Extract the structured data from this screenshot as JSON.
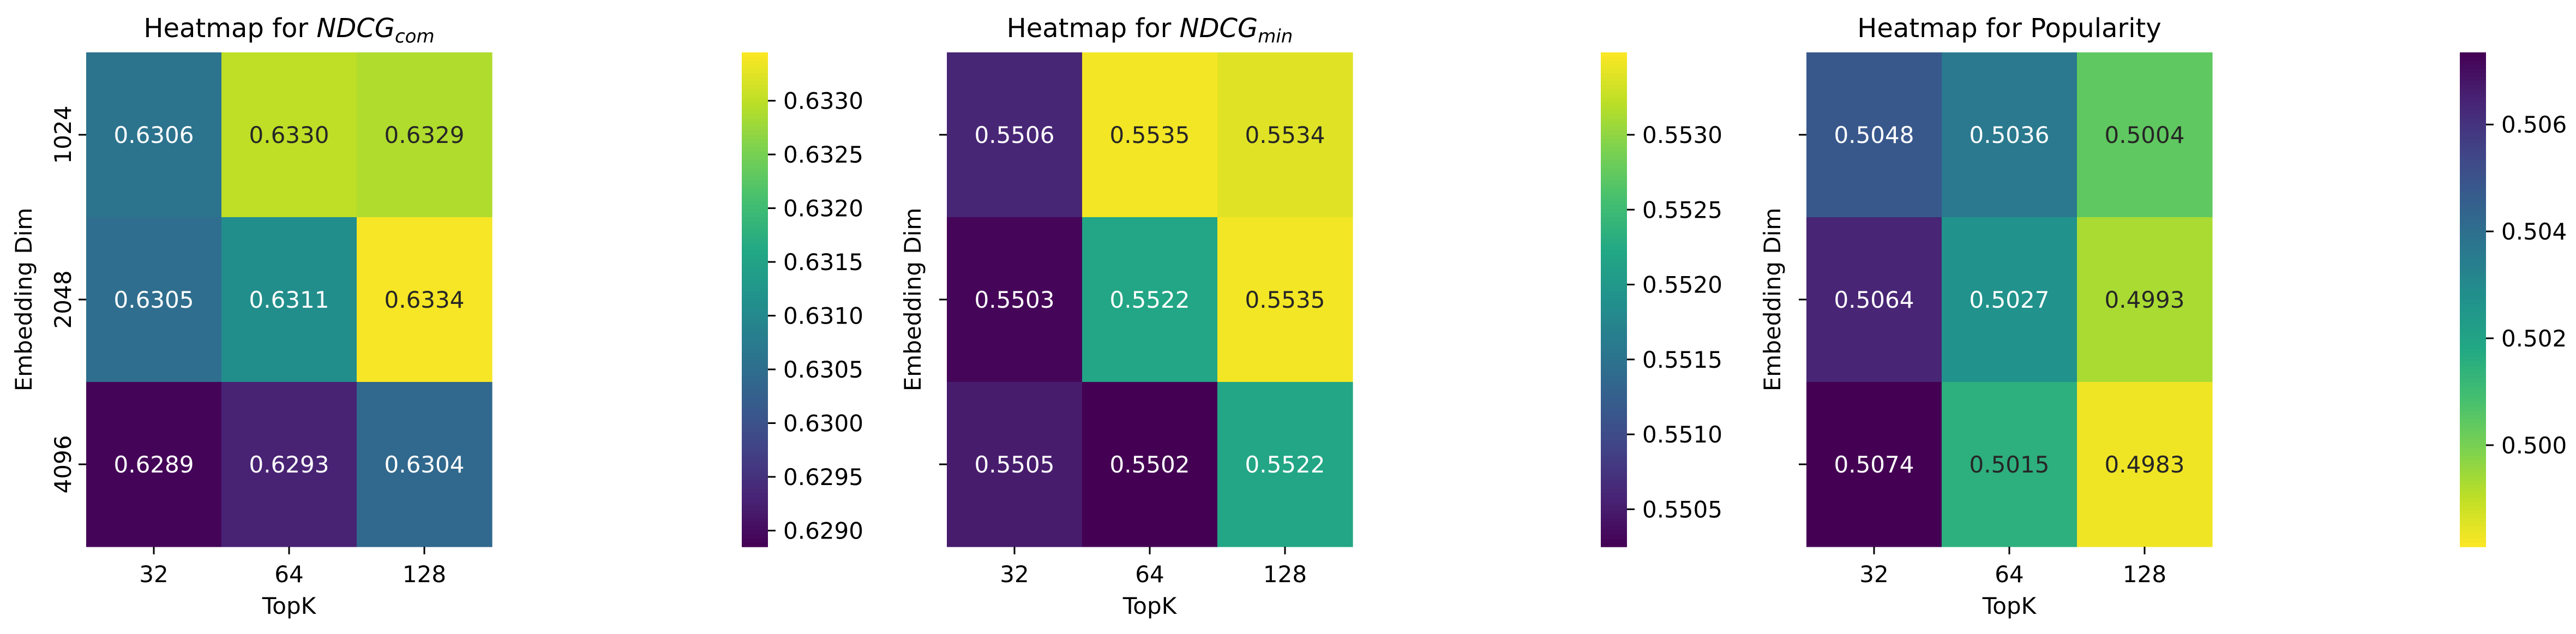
{
  "chart_data": [
    {
      "type": "heatmap",
      "title": "Heatmap for NDCG",
      "title_subscript": "com",
      "xlabel": "TopK",
      "ylabel": "Embedding Dim",
      "x_categories": [
        "32",
        "64",
        "128"
      ],
      "y_categories": [
        "1024",
        "2048",
        "4096"
      ],
      "values": [
        [
          0.6306,
          0.633,
          0.6329
        ],
        [
          0.6305,
          0.6311,
          0.6334
        ],
        [
          0.6289,
          0.6293,
          0.6304
        ]
      ],
      "colormap": "viridis",
      "colorbar_range": [
        0.62885,
        0.63345
      ],
      "colorbar_ticks": [
        "0.6290",
        "0.6295",
        "0.6300",
        "0.6305",
        "0.6310",
        "0.6315",
        "0.6320",
        "0.6325",
        "0.6330"
      ],
      "show_y_ticklabels": true
    },
    {
      "type": "heatmap",
      "title": "Heatmap for NDCG",
      "title_subscript": "min",
      "xlabel": "TopK",
      "ylabel": "Embedding Dim",
      "x_categories": [
        "32",
        "64",
        "128"
      ],
      "y_categories": [
        "1024",
        "2048",
        "4096"
      ],
      "values": [
        [
          0.5506,
          0.5535,
          0.5534
        ],
        [
          0.5503,
          0.5522,
          0.5535
        ],
        [
          0.5505,
          0.5502,
          0.5522
        ]
      ],
      "colormap": "viridis",
      "colorbar_range": [
        0.55025,
        0.55355
      ],
      "colorbar_ticks": [
        "0.5505",
        "0.5510",
        "0.5515",
        "0.5520",
        "0.5525",
        "0.5530"
      ],
      "show_y_ticklabels": false
    },
    {
      "type": "heatmap",
      "title": "Heatmap for Popularity",
      "title_subscript": "",
      "xlabel": "TopK",
      "ylabel": "Embedding Dim",
      "x_categories": [
        "32",
        "64",
        "128"
      ],
      "y_categories": [
        "1024",
        "2048",
        "4096"
      ],
      "values": [
        [
          0.5048,
          0.5036,
          0.5004
        ],
        [
          0.5064,
          0.5027,
          0.4993
        ],
        [
          0.5074,
          0.5015,
          0.4983
        ]
      ],
      "colormap": "viridis_r",
      "colorbar_range": [
        0.4981,
        0.50735
      ],
      "colorbar_ticks": [
        "0.500",
        "0.502",
        "0.504",
        "0.506"
      ],
      "show_y_ticklabels": false
    }
  ]
}
